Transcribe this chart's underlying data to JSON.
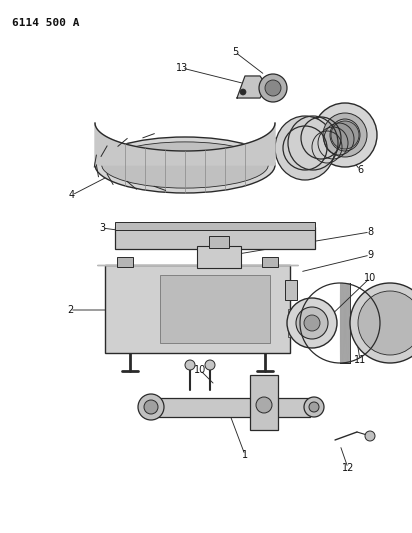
{
  "title": "6114 500 A",
  "bg_color": "#ffffff",
  "lc": "#2a2a2a",
  "figsize": [
    4.12,
    5.33
  ],
  "dpi": 100,
  "label_color": "#111111"
}
